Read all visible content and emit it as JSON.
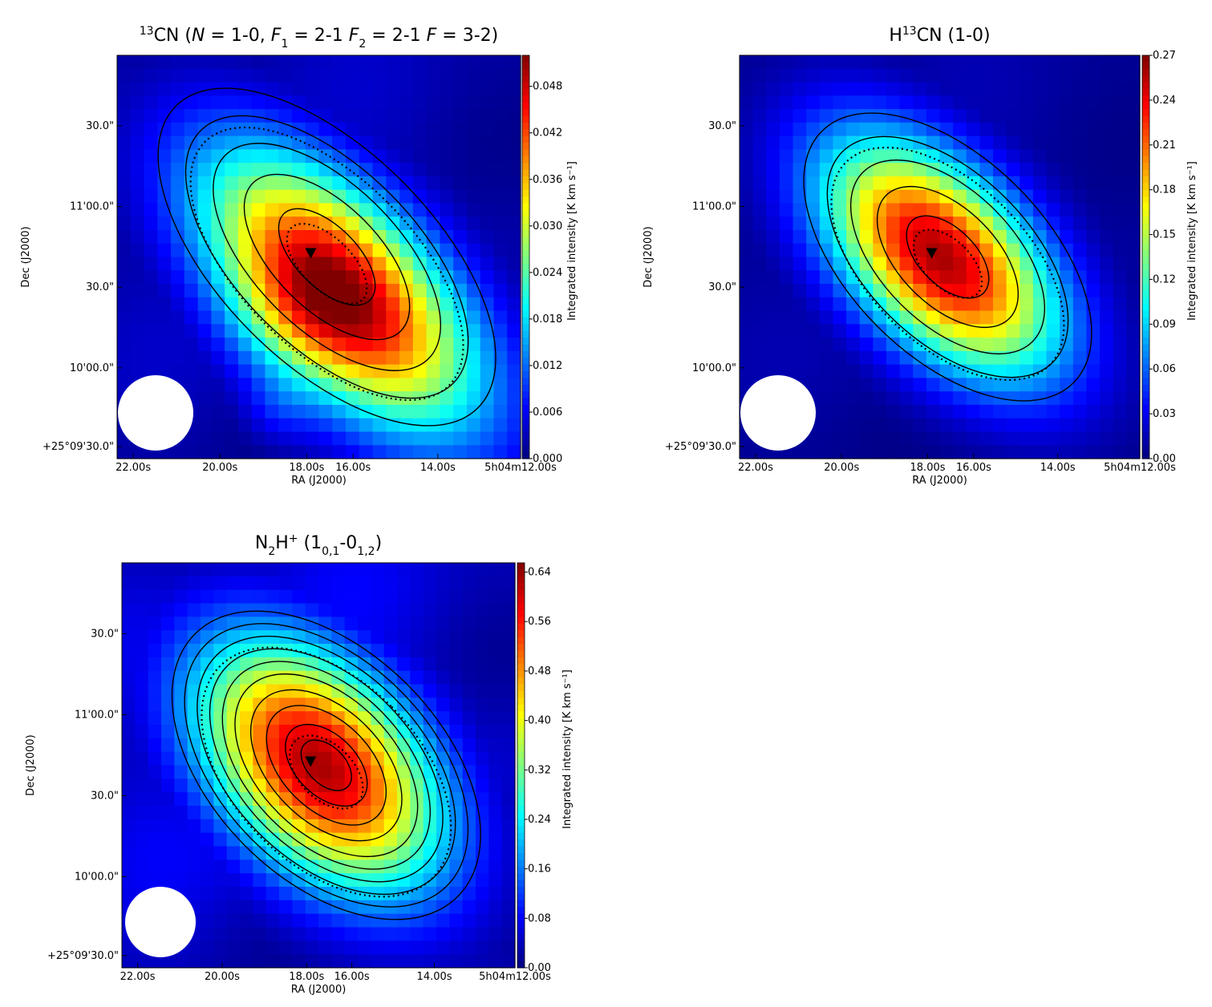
{
  "chart_data": [
    {
      "type": "heatmap",
      "title": "13CN (N = 1-0, F1 = 2-1 F2 = 2-1 F = 3-2)",
      "title_parts": [
        {
          "t": "13",
          "sup": true
        },
        {
          "t": "CN ("
        },
        {
          "t": "N",
          "it": true
        },
        {
          "t": " = 1-0, "
        },
        {
          "t": "F",
          "it": true
        },
        {
          "t": "1",
          "sub": true
        },
        {
          "t": " = 2-1 "
        },
        {
          "t": "F",
          "it": true
        },
        {
          "t": "2",
          "sub": true
        },
        {
          "t": " = 2-1 "
        },
        {
          "t": "F",
          "it": true
        },
        {
          "t": " = 3-2)"
        }
      ],
      "xlabel": "RA (J2000)",
      "ylabel": "Dec (J2000)",
      "x_ticks": [
        "22.00s",
        "20.00s",
        "18.00s",
        "16.00s",
        "14.00s",
        "5h04m12.00s"
      ],
      "y_ticks": [
        "+25°09'30.0\"",
        "10'00.0\"",
        "30.0\"",
        "11'00.0\"",
        "30.0\""
      ],
      "colorbar_label": "Integrated intensity [K km s⁻¹]",
      "colorbar_ticks": [
        "0.000",
        "0.006",
        "0.012",
        "0.018",
        "0.024",
        "0.030",
        "0.036",
        "0.042",
        "0.048"
      ],
      "colorbar_range": [
        0,
        0.052
      ],
      "colormap": "jet",
      "peak_value": 0.05,
      "peak_offset": [
        0.2,
        0.33
      ],
      "source_shape": [
        0.3,
        0.6,
        0.45
      ],
      "extra_blobs": [
        [
          0.16,
          -0.1,
          0.3,
          0.25,
          0.22
        ],
        [
          0.08,
          -0.2,
          0.75,
          0.12,
          0.12
        ]
      ],
      "background_level": 0.12,
      "marker": "triangle-down",
      "beam": "circle"
    },
    {
      "type": "heatmap",
      "title": "H13CN (1-0)",
      "title_parts": [
        {
          "t": "H"
        },
        {
          "t": "13",
          "sup": true
        },
        {
          "t": "CN (1-0)"
        }
      ],
      "xlabel": "RA (J2000)",
      "ylabel": "Dec (J2000)",
      "x_ticks": [
        "22.00s",
        "20.00s",
        "18.00s",
        "16.00s",
        "14.00s",
        "5h04m12.00s"
      ],
      "y_ticks": [
        "+25°09'30.0\"",
        "10'00.0\"",
        "30.0\"",
        "11'00.0\"",
        "30.0\""
      ],
      "colorbar_label": "Integrated intensity [K km s⁻¹]",
      "colorbar_ticks": [
        "0.00",
        "0.03",
        "0.06",
        "0.09",
        "0.12",
        "0.15",
        "0.18",
        "0.21",
        "0.24",
        "0.27"
      ],
      "colorbar_range": [
        0,
        0.27
      ],
      "colormap": "jet",
      "peak_value": 0.26,
      "peak_offset": [
        0.0,
        0.0
      ],
      "source_shape": [
        0.28,
        0.5,
        0.5
      ],
      "extra_blobs": [],
      "background_level": 0.08,
      "marker": "triangle-down",
      "beam": "circle"
    },
    {
      "type": "heatmap",
      "title": "N2H+ (10,1-01,2)",
      "title_parts": [
        {
          "t": "N"
        },
        {
          "t": "2",
          "sub": true
        },
        {
          "t": "H"
        },
        {
          "t": "+",
          "sup": true
        },
        {
          "t": " (1"
        },
        {
          "t": "0,1",
          "sub": true
        },
        {
          "t": "-0"
        },
        {
          "t": "1,2",
          "sub": true
        },
        {
          "t": ")"
        }
      ],
      "xlabel": "RA (J2000)",
      "ylabel": "Dec (J2000)",
      "x_ticks": [
        "22.00s",
        "20.00s",
        "18.00s",
        "16.00s",
        "14.00s",
        "5h04m12.00s"
      ],
      "y_ticks": [
        "+25°09'30.0\"",
        "10'00.0\"",
        "30.0\"",
        "11'00.0\"",
        "30.0\""
      ],
      "colorbar_label": "Integrated intensity [K km s⁻¹]",
      "colorbar_ticks": [
        "0.00",
        "0.08",
        "0.16",
        "0.24",
        "0.32",
        "0.40",
        "0.48",
        "0.56",
        "0.64"
      ],
      "colorbar_range": [
        0,
        0.655
      ],
      "colormap": "jet",
      "peak_value": 0.63,
      "peak_offset": [
        0.0,
        0.0
      ],
      "source_shape": [
        0.33,
        0.52,
        0.55
      ],
      "extra_blobs": [],
      "background_level": 0.2,
      "marker": "triangle-down",
      "beam": "circle"
    }
  ]
}
